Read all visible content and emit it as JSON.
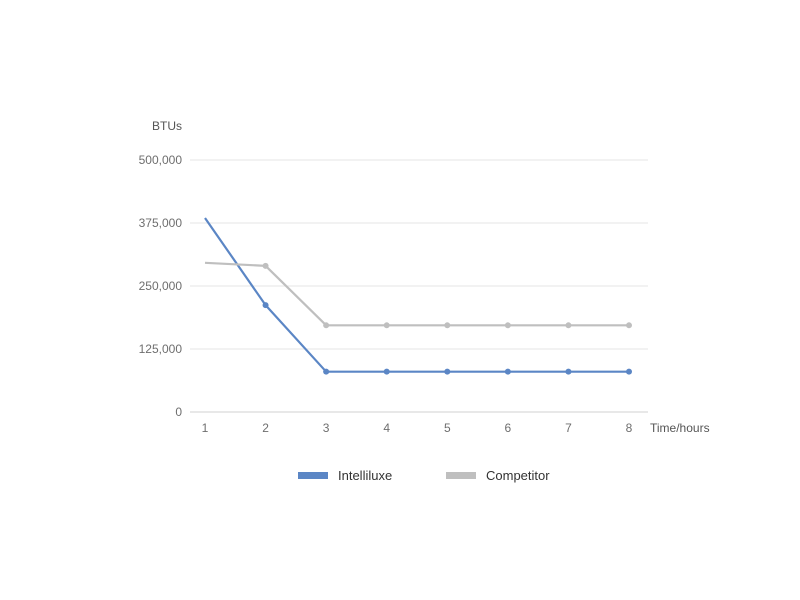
{
  "chart_data": {
    "type": "line",
    "title": "",
    "xlabel": "Time/hours",
    "ylabel": "BTUs",
    "x": [
      "1",
      "2",
      "3",
      "4",
      "5",
      "6",
      "7",
      "8"
    ],
    "ylim": [
      0,
      500000
    ],
    "yticks": [
      "0",
      "125,000",
      "250,000",
      "375,000",
      "500,000"
    ],
    "ytick_values": [
      0,
      125000,
      250000,
      375000,
      500000
    ],
    "grid": true,
    "legend_position": "bottom",
    "series": [
      {
        "name": "Intelliluxe",
        "color": "#5b86c5",
        "values": [
          385000,
          212000,
          80000,
          80000,
          80000,
          80000,
          80000,
          80000
        ]
      },
      {
        "name": "Competitor",
        "color": "#bfbfbf",
        "values": [
          296000,
          290000,
          172000,
          172000,
          172000,
          172000,
          172000,
          172000
        ]
      }
    ]
  }
}
